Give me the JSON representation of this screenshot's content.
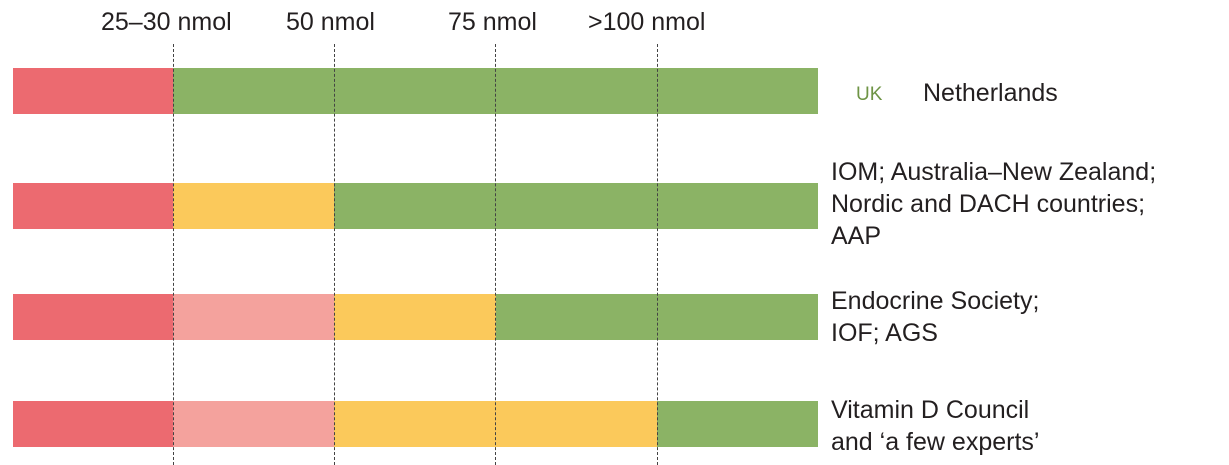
{
  "thresholds": {
    "t1": "25–30 nmol",
    "t2": "50 nmol",
    "t3": "75 nmol",
    "t4": ">100 nmol"
  },
  "colors": {
    "deficient": "#ec6a70",
    "insufficient": "#f4a29d",
    "suboptimal": "#fbc95b",
    "sufficient": "#8bb365",
    "uk_text": "#6e9445"
  },
  "rows": [
    {
      "segments": [
        "deficient",
        "sufficient"
      ],
      "labels": {
        "uk": "UK",
        "netherlands": "Netherlands"
      }
    },
    {
      "segments": [
        "deficient",
        "suboptimal",
        "sufficient"
      ],
      "lines": [
        "IOM; Australia–New Zealand;",
        "Nordic and DACH countries;",
        "AAP"
      ]
    },
    {
      "segments": [
        "deficient",
        "insufficient",
        "suboptimal",
        "sufficient"
      ],
      "lines": [
        "Endocrine Society;",
        "IOF; AGS"
      ]
    },
    {
      "segments": [
        "deficient",
        "insufficient",
        "suboptimal",
        "sufficient"
      ],
      "lines": [
        "Vitamin D Council",
        "and ‘a few experts’"
      ]
    }
  ]
}
